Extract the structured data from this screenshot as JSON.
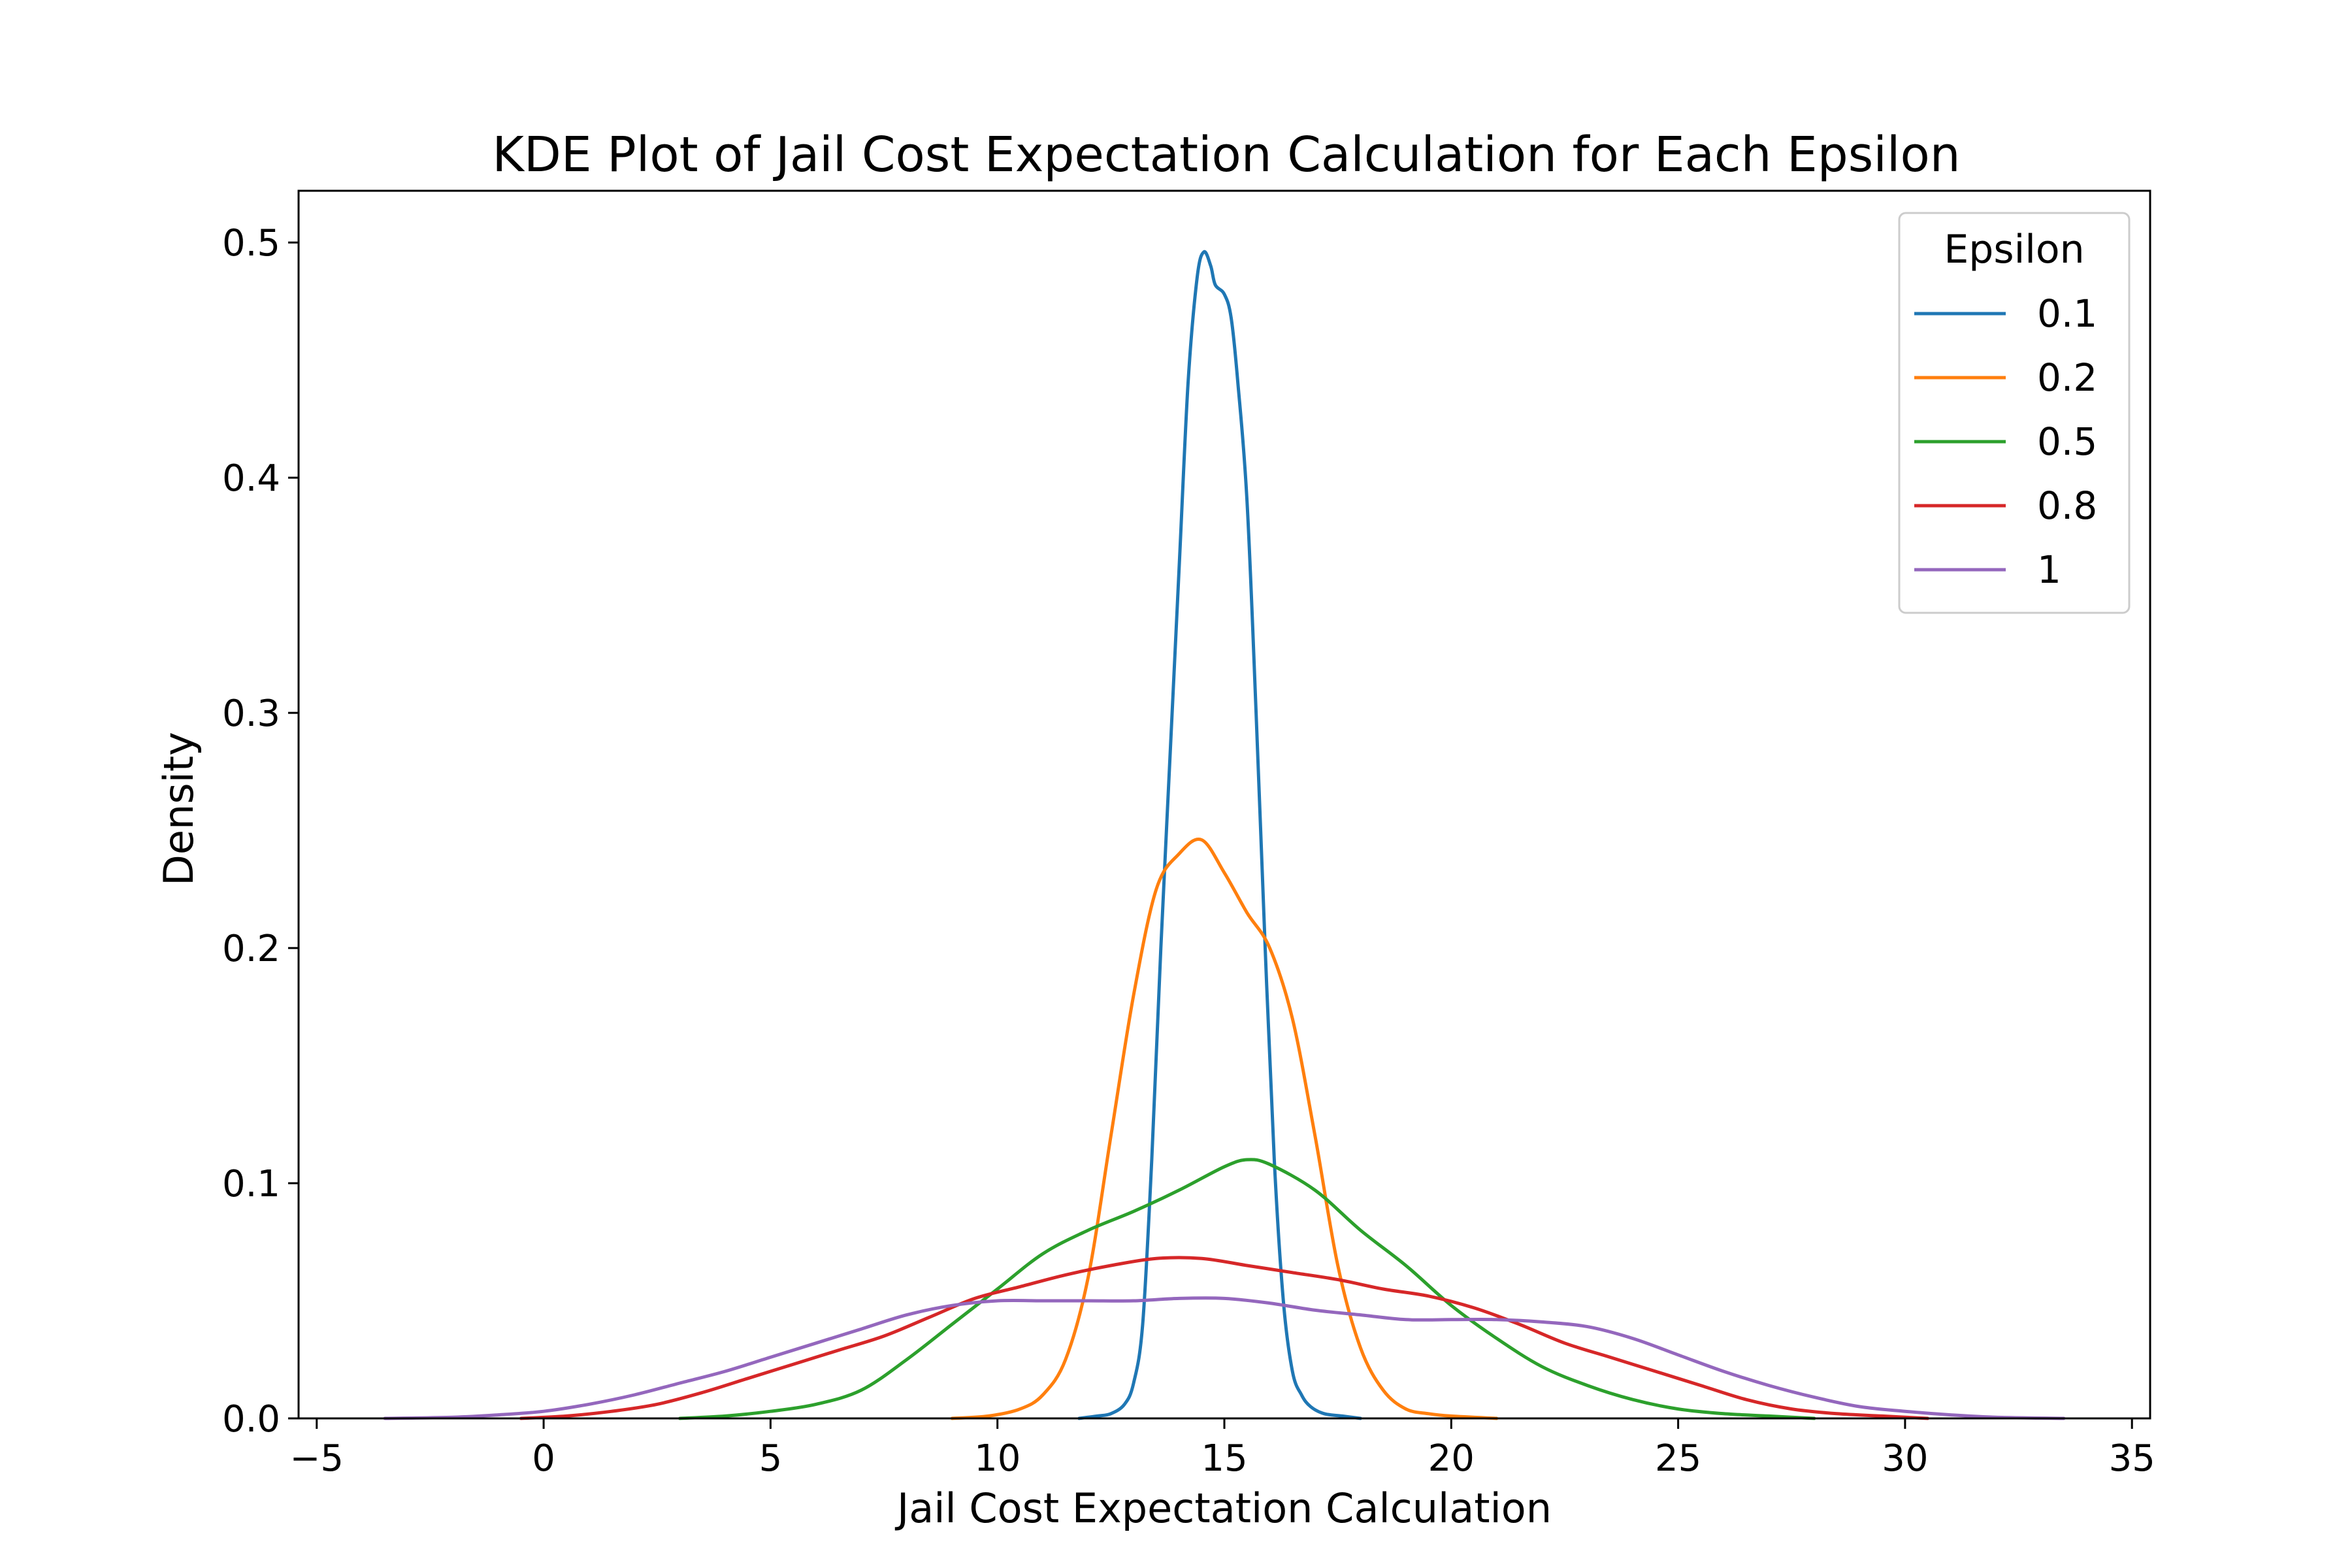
{
  "chart_data": {
    "type": "line",
    "title": "KDE Plot of Jail Cost Expectation Calculation for Each Epsilon",
    "xlabel": "Jail Cost Expectation Calculation",
    "ylabel": "Density",
    "xlim": [
      -5.4,
      35.4
    ],
    "ylim": [
      0,
      0.522
    ],
    "xticks": [
      -5,
      0,
      5,
      10,
      15,
      20,
      25,
      30,
      35
    ],
    "xtick_labels": [
      "−5",
      "0",
      "5",
      "10",
      "15",
      "20",
      "25",
      "30",
      "35"
    ],
    "yticks": [
      0.0,
      0.1,
      0.2,
      0.3,
      0.4,
      0.5
    ],
    "ytick_labels": [
      "0.0",
      "0.1",
      "0.2",
      "0.3",
      "0.4",
      "0.5"
    ],
    "grid": false,
    "legend": {
      "title": "Epsilon",
      "position": "top-right"
    },
    "series": [
      {
        "name": "0.1",
        "color": "#1f77b4",
        "points": [
          [
            11.8,
            0
          ],
          [
            12.2,
            0.001
          ],
          [
            12.5,
            0.002
          ],
          [
            12.8,
            0.006
          ],
          [
            13.0,
            0.015
          ],
          [
            13.2,
            0.04
          ],
          [
            13.4,
            0.11
          ],
          [
            13.6,
            0.2
          ],
          [
            13.8,
            0.28
          ],
          [
            14.0,
            0.36
          ],
          [
            14.2,
            0.44
          ],
          [
            14.4,
            0.485
          ],
          [
            14.55,
            0.496
          ],
          [
            14.7,
            0.49
          ],
          [
            14.8,
            0.482
          ],
          [
            15.0,
            0.478
          ],
          [
            15.15,
            0.468
          ],
          [
            15.3,
            0.44
          ],
          [
            15.5,
            0.39
          ],
          [
            15.7,
            0.3
          ],
          [
            15.9,
            0.2
          ],
          [
            16.1,
            0.11
          ],
          [
            16.3,
            0.05
          ],
          [
            16.5,
            0.02
          ],
          [
            16.7,
            0.01
          ],
          [
            16.9,
            0.005
          ],
          [
            17.2,
            0.002
          ],
          [
            17.6,
            0.001
          ],
          [
            18.0,
            0
          ]
        ]
      },
      {
        "name": "0.2",
        "color": "#ff7f0e",
        "points": [
          [
            9.0,
            0
          ],
          [
            9.8,
            0.001
          ],
          [
            10.5,
            0.004
          ],
          [
            11.0,
            0.01
          ],
          [
            11.5,
            0.025
          ],
          [
            12.0,
            0.06
          ],
          [
            12.5,
            0.12
          ],
          [
            13.0,
            0.18
          ],
          [
            13.5,
            0.225
          ],
          [
            14.0,
            0.24
          ],
          [
            14.5,
            0.246
          ],
          [
            15.0,
            0.232
          ],
          [
            15.5,
            0.215
          ],
          [
            16.0,
            0.2
          ],
          [
            16.5,
            0.17
          ],
          [
            17.0,
            0.12
          ],
          [
            17.5,
            0.065
          ],
          [
            18.0,
            0.03
          ],
          [
            18.5,
            0.012
          ],
          [
            19.0,
            0.004
          ],
          [
            19.5,
            0.002
          ],
          [
            20.0,
            0.001
          ],
          [
            21.0,
            0
          ]
        ]
      },
      {
        "name": "0.5",
        "color": "#2ca02c",
        "points": [
          [
            3.0,
            0
          ],
          [
            4.0,
            0.001
          ],
          [
            5.0,
            0.003
          ],
          [
            6.0,
            0.006
          ],
          [
            7.0,
            0.012
          ],
          [
            8.0,
            0.025
          ],
          [
            9.0,
            0.04
          ],
          [
            10.0,
            0.055
          ],
          [
            11.0,
            0.07
          ],
          [
            12.0,
            0.08
          ],
          [
            13.0,
            0.088
          ],
          [
            14.0,
            0.097
          ],
          [
            15.0,
            0.107
          ],
          [
            15.5,
            0.11
          ],
          [
            16.0,
            0.108
          ],
          [
            17.0,
            0.097
          ],
          [
            18.0,
            0.08
          ],
          [
            19.0,
            0.065
          ],
          [
            20.0,
            0.048
          ],
          [
            21.0,
            0.034
          ],
          [
            22.0,
            0.022
          ],
          [
            23.0,
            0.014
          ],
          [
            24.0,
            0.008
          ],
          [
            25.0,
            0.004
          ],
          [
            26.0,
            0.002
          ],
          [
            27.0,
            0.001
          ],
          [
            28.0,
            0
          ]
        ]
      },
      {
        "name": "0.8",
        "color": "#d62728",
        "points": [
          [
            -0.5,
            0
          ],
          [
            0.5,
            0.001
          ],
          [
            1.5,
            0.003
          ],
          [
            2.5,
            0.006
          ],
          [
            3.5,
            0.011
          ],
          [
            4.5,
            0.017
          ],
          [
            5.5,
            0.023
          ],
          [
            6.5,
            0.029
          ],
          [
            7.5,
            0.035
          ],
          [
            8.5,
            0.043
          ],
          [
            9.5,
            0.051
          ],
          [
            10.5,
            0.056
          ],
          [
            11.5,
            0.061
          ],
          [
            12.5,
            0.065
          ],
          [
            13.5,
            0.068
          ],
          [
            14.5,
            0.068
          ],
          [
            15.5,
            0.065
          ],
          [
            16.5,
            0.062
          ],
          [
            17.5,
            0.059
          ],
          [
            18.5,
            0.055
          ],
          [
            19.5,
            0.052
          ],
          [
            20.5,
            0.047
          ],
          [
            21.5,
            0.04
          ],
          [
            22.5,
            0.032
          ],
          [
            23.5,
            0.026
          ],
          [
            24.5,
            0.02
          ],
          [
            25.5,
            0.014
          ],
          [
            26.5,
            0.008
          ],
          [
            27.5,
            0.004
          ],
          [
            28.5,
            0.002
          ],
          [
            29.5,
            0.001
          ],
          [
            30.5,
            0
          ]
        ]
      },
      {
        "name": "1",
        "color": "#9467bd",
        "points": [
          [
            -3.5,
            0
          ],
          [
            -2.0,
            0.0005
          ],
          [
            -1.0,
            0.0015
          ],
          [
            0.0,
            0.003
          ],
          [
            1.0,
            0.006
          ],
          [
            2.0,
            0.01
          ],
          [
            3.0,
            0.015
          ],
          [
            4.0,
            0.02
          ],
          [
            5.0,
            0.026
          ],
          [
            6.0,
            0.032
          ],
          [
            7.0,
            0.038
          ],
          [
            8.0,
            0.044
          ],
          [
            9.0,
            0.048
          ],
          [
            10.0,
            0.05
          ],
          [
            11.0,
            0.05
          ],
          [
            12.0,
            0.05
          ],
          [
            13.0,
            0.05
          ],
          [
            14.0,
            0.051
          ],
          [
            15.0,
            0.051
          ],
          [
            16.0,
            0.049
          ],
          [
            17.0,
            0.046
          ],
          [
            18.0,
            0.044
          ],
          [
            19.0,
            0.042
          ],
          [
            20.0,
            0.042
          ],
          [
            21.0,
            0.042
          ],
          [
            22.0,
            0.041
          ],
          [
            23.0,
            0.039
          ],
          [
            24.0,
            0.034
          ],
          [
            25.0,
            0.027
          ],
          [
            26.0,
            0.02
          ],
          [
            27.0,
            0.014
          ],
          [
            28.0,
            0.009
          ],
          [
            29.0,
            0.005
          ],
          [
            30.0,
            0.003
          ],
          [
            31.0,
            0.0015
          ],
          [
            32.0,
            0.0005
          ],
          [
            33.5,
            0
          ]
        ]
      }
    ]
  }
}
